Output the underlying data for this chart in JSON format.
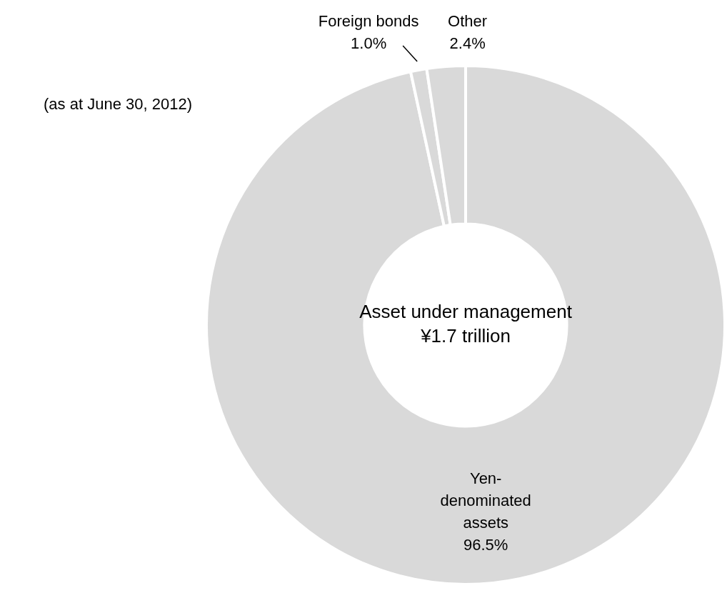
{
  "chart_data": {
    "type": "donut",
    "subtitle": "(as at June 30, 2012)",
    "annotations": [
      "Asset under management\n¥1.7 trillion"
    ],
    "categories": [
      "Yen-denominated assets",
      "Foreign bonds",
      "Other"
    ],
    "values": [
      96.5,
      1.0,
      2.4
    ],
    "value_labels": [
      "96.5%",
      "1.0%",
      "2.4%"
    ],
    "colors": [
      "#d9d9d9",
      "#d9d9d9",
      "#d9d9d9"
    ],
    "legend": false
  }
}
